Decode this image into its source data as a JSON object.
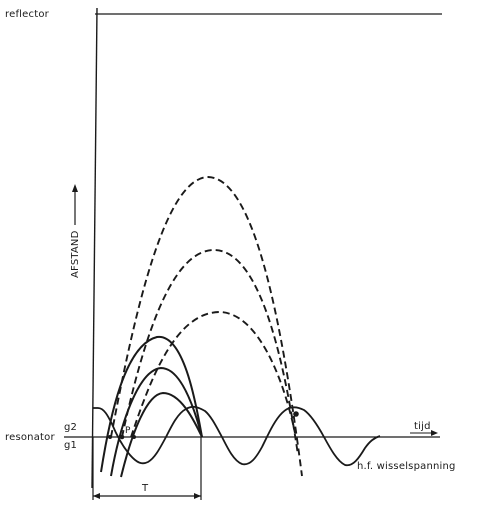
{
  "labels": {
    "reflector": "reflector",
    "resonator": "resonator",
    "g2": "g2",
    "g1": "g1",
    "axis_vertical": "AFSTAND",
    "axis_time": "tijd",
    "period": "T",
    "point_p": "P",
    "voltage": "h.f. wisselspanning"
  },
  "colors": {
    "ink": "#1a1a1a",
    "background": "#ffffff"
  }
}
